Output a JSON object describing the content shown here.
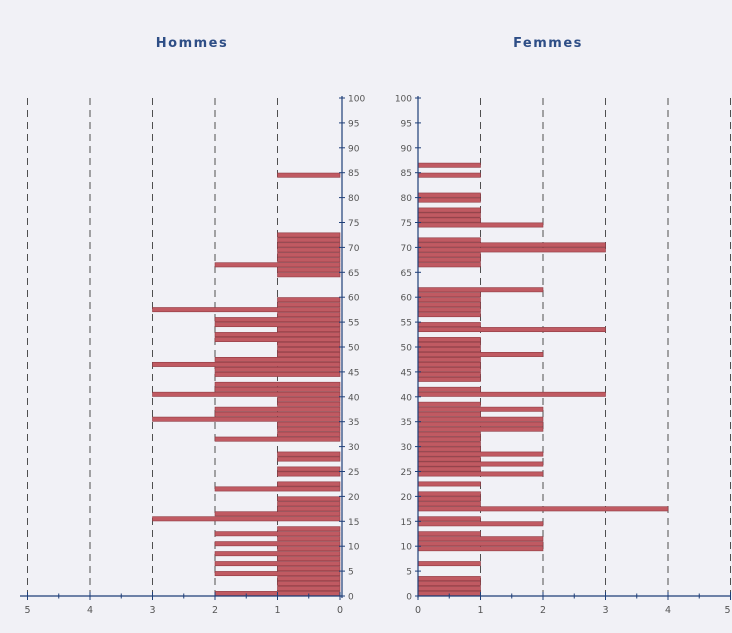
{
  "chart_data": {
    "type": "bar",
    "orientation": "horizontal",
    "subtype": "population-pyramid",
    "colors": {
      "bar": "#c05a62",
      "bar_edge": "#8e3a42",
      "axis": "#1f3f78",
      "grid": "#333333",
      "background": "#f1f1f6",
      "title": "#2e4e86"
    },
    "panels": [
      {
        "name": "hommes",
        "title": "Hommes",
        "xlim": [
          5,
          0
        ],
        "xticks": [
          "5",
          "4",
          "3",
          "2",
          "1",
          "0"
        ],
        "ylim": [
          0,
          100
        ],
        "yticks": [
          "0",
          "5",
          "10",
          "15",
          "20",
          "25",
          "30",
          "35",
          "40",
          "45",
          "50",
          "55",
          "60",
          "65",
          "70",
          "75",
          "80",
          "85",
          "90",
          "95",
          "100"
        ],
        "bars": [
          {
            "age": 0,
            "value": 2
          },
          {
            "age": 1,
            "value": 1
          },
          {
            "age": 2,
            "value": 1
          },
          {
            "age": 3,
            "value": 1
          },
          {
            "age": 4,
            "value": 2
          },
          {
            "age": 5,
            "value": 1
          },
          {
            "age": 6,
            "value": 2
          },
          {
            "age": 7,
            "value": 1
          },
          {
            "age": 8,
            "value": 2
          },
          {
            "age": 9,
            "value": 1
          },
          {
            "age": 10,
            "value": 2
          },
          {
            "age": 11,
            "value": 1
          },
          {
            "age": 12,
            "value": 2
          },
          {
            "age": 13,
            "value": 1
          },
          {
            "age": 15,
            "value": 3
          },
          {
            "age": 16,
            "value": 2
          },
          {
            "age": 17,
            "value": 1
          },
          {
            "age": 18,
            "value": 1
          },
          {
            "age": 19,
            "value": 1
          },
          {
            "age": 21,
            "value": 2
          },
          {
            "age": 22,
            "value": 1
          },
          {
            "age": 24,
            "value": 1
          },
          {
            "age": 25,
            "value": 1
          },
          {
            "age": 27,
            "value": 1
          },
          {
            "age": 28,
            "value": 1
          },
          {
            "age": 31,
            "value": 2
          },
          {
            "age": 32,
            "value": 1
          },
          {
            "age": 33,
            "value": 1
          },
          {
            "age": 34,
            "value": 1
          },
          {
            "age": 35,
            "value": 3
          },
          {
            "age": 36,
            "value": 2
          },
          {
            "age": 37,
            "value": 2
          },
          {
            "age": 38,
            "value": 1
          },
          {
            "age": 39,
            "value": 1
          },
          {
            "age": 40,
            "value": 3
          },
          {
            "age": 41,
            "value": 2
          },
          {
            "age": 42,
            "value": 2
          },
          {
            "age": 44,
            "value": 2
          },
          {
            "age": 45,
            "value": 2
          },
          {
            "age": 46,
            "value": 3
          },
          {
            "age": 47,
            "value": 2
          },
          {
            "age": 48,
            "value": 1
          },
          {
            "age": 49,
            "value": 1
          },
          {
            "age": 50,
            "value": 1
          },
          {
            "age": 51,
            "value": 2
          },
          {
            "age": 52,
            "value": 2
          },
          {
            "age": 53,
            "value": 1
          },
          {
            "age": 54,
            "value": 2
          },
          {
            "age": 55,
            "value": 2
          },
          {
            "age": 56,
            "value": 1
          },
          {
            "age": 57,
            "value": 3
          },
          {
            "age": 58,
            "value": 1
          },
          {
            "age": 59,
            "value": 1
          },
          {
            "age": 64,
            "value": 1
          },
          {
            "age": 65,
            "value": 1
          },
          {
            "age": 66,
            "value": 2
          },
          {
            "age": 67,
            "value": 1
          },
          {
            "age": 68,
            "value": 1
          },
          {
            "age": 69,
            "value": 1
          },
          {
            "age": 70,
            "value": 1
          },
          {
            "age": 71,
            "value": 1
          },
          {
            "age": 72,
            "value": 1
          },
          {
            "age": 84,
            "value": 1
          }
        ]
      },
      {
        "name": "femmes",
        "title": "Femmes",
        "xlim": [
          0,
          5
        ],
        "xticks": [
          "0",
          "1",
          "2",
          "3",
          "4",
          "5"
        ],
        "ylim": [
          0,
          100
        ],
        "yticks": [
          "0",
          "5",
          "10",
          "15",
          "20",
          "25",
          "30",
          "35",
          "40",
          "45",
          "50",
          "55",
          "60",
          "65",
          "70",
          "75",
          "80",
          "85",
          "90",
          "95",
          "100"
        ],
        "bars": [
          {
            "age": 0,
            "value": 1
          },
          {
            "age": 1,
            "value": 1
          },
          {
            "age": 2,
            "value": 1
          },
          {
            "age": 3,
            "value": 1
          },
          {
            "age": 6,
            "value": 1
          },
          {
            "age": 9,
            "value": 2
          },
          {
            "age": 10,
            "value": 2
          },
          {
            "age": 11,
            "value": 2
          },
          {
            "age": 12,
            "value": 1
          },
          {
            "age": 14,
            "value": 2
          },
          {
            "age": 15,
            "value": 1
          },
          {
            "age": 17,
            "value": 4
          },
          {
            "age": 18,
            "value": 1
          },
          {
            "age": 19,
            "value": 1
          },
          {
            "age": 20,
            "value": 1
          },
          {
            "age": 22,
            "value": 1
          },
          {
            "age": 24,
            "value": 2
          },
          {
            "age": 25,
            "value": 1
          },
          {
            "age": 26,
            "value": 2
          },
          {
            "age": 27,
            "value": 1
          },
          {
            "age": 28,
            "value": 2
          },
          {
            "age": 29,
            "value": 1
          },
          {
            "age": 30,
            "value": 1
          },
          {
            "age": 31,
            "value": 1
          },
          {
            "age": 32,
            "value": 1
          },
          {
            "age": 33,
            "value": 2
          },
          {
            "age": 34,
            "value": 2
          },
          {
            "age": 35,
            "value": 2
          },
          {
            "age": 36,
            "value": 1
          },
          {
            "age": 37,
            "value": 2
          },
          {
            "age": 38,
            "value": 1
          },
          {
            "age": 40,
            "value": 3
          },
          {
            "age": 41,
            "value": 1
          },
          {
            "age": 43,
            "value": 1
          },
          {
            "age": 44,
            "value": 1
          },
          {
            "age": 45,
            "value": 1
          },
          {
            "age": 46,
            "value": 1
          },
          {
            "age": 47,
            "value": 1
          },
          {
            "age": 48,
            "value": 2
          },
          {
            "age": 49,
            "value": 1
          },
          {
            "age": 50,
            "value": 1
          },
          {
            "age": 51,
            "value": 1
          },
          {
            "age": 53,
            "value": 3
          },
          {
            "age": 54,
            "value": 1
          },
          {
            "age": 56,
            "value": 1
          },
          {
            "age": 57,
            "value": 1
          },
          {
            "age": 58,
            "value": 1
          },
          {
            "age": 59,
            "value": 1
          },
          {
            "age": 60,
            "value": 1
          },
          {
            "age": 61,
            "value": 2
          },
          {
            "age": 66,
            "value": 1
          },
          {
            "age": 67,
            "value": 1
          },
          {
            "age": 68,
            "value": 1
          },
          {
            "age": 69,
            "value": 3
          },
          {
            "age": 70,
            "value": 3
          },
          {
            "age": 71,
            "value": 1
          },
          {
            "age": 74,
            "value": 2
          },
          {
            "age": 75,
            "value": 1
          },
          {
            "age": 76,
            "value": 1
          },
          {
            "age": 77,
            "value": 1
          },
          {
            "age": 79,
            "value": 1
          },
          {
            "age": 80,
            "value": 1
          },
          {
            "age": 84,
            "value": 1
          },
          {
            "age": 86,
            "value": 1
          }
        ]
      }
    ]
  }
}
